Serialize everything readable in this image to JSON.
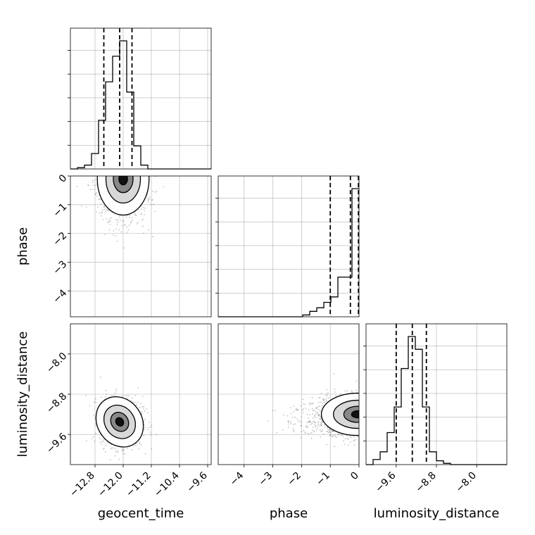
{
  "chart_data": {
    "type": "corner",
    "parameters": [
      "geocent_time",
      "phase",
      "luminosity_distance"
    ],
    "axis_labels": {
      "geocent_time": "geocent_time",
      "phase": "phase",
      "luminosity_distance": "luminosity_distance"
    },
    "ranges": {
      "geocent_time": [
        -13.5,
        -9.5
      ],
      "phase": [
        -4.9,
        0.0
      ],
      "luminosity_distance": [
        -10.2,
        -7.4
      ]
    },
    "ticks": {
      "geocent_time": [
        {
          "v": -12.8,
          "label": "−12.8"
        },
        {
          "v": -12.0,
          "label": "−12.0"
        },
        {
          "v": -11.2,
          "label": "−11.2"
        },
        {
          "v": -10.4,
          "label": "−10.4"
        },
        {
          "v": -9.6,
          "label": "−9.6"
        }
      ],
      "phase": [
        {
          "v": -4,
          "label": "−4"
        },
        {
          "v": -3,
          "label": "−3"
        },
        {
          "v": -2,
          "label": "−2"
        },
        {
          "v": -1,
          "label": "−1"
        },
        {
          "v": 0,
          "label": "0"
        }
      ],
      "luminosity_distance": [
        {
          "v": -9.6,
          "label": "−9.6"
        },
        {
          "v": -8.8,
          "label": "−8.8"
        },
        {
          "v": -8.0,
          "label": "−8.0"
        }
      ]
    },
    "grid": true,
    "histograms": [
      {
        "param": "geocent_time",
        "bin_edges": [
          -13.5,
          -13.3,
          -13.1,
          -12.9,
          -12.7,
          -12.5,
          -12.3,
          -12.1,
          -11.9,
          -11.7,
          -11.5,
          -11.3,
          -11.1,
          -10.9,
          -10.7,
          -10.5,
          -10.3,
          -10.1,
          -9.9,
          -9.7,
          -9.5
        ],
        "counts": [
          0,
          1,
          3,
          12,
          38,
          68,
          88,
          100,
          60,
          18,
          3,
          0,
          0,
          0,
          0,
          0,
          0,
          0,
          0,
          0
        ],
        "quantiles": [
          -12.55,
          -12.1,
          -11.75
        ]
      },
      {
        "param": "phase",
        "bin_edges": [
          -4.9,
          -4.655,
          -4.41,
          -4.165,
          -3.92,
          -3.675,
          -3.43,
          -3.185,
          -2.94,
          -2.695,
          -2.45,
          -2.205,
          -1.96,
          -1.715,
          -1.47,
          -1.225,
          -0.98,
          -0.735,
          -0.49,
          -0.245,
          0.0
        ],
        "counts": [
          0,
          0,
          0,
          0,
          0,
          0,
          0,
          0,
          0,
          0,
          0,
          0,
          1,
          3,
          5,
          8,
          11,
          22,
          22,
          71
        ],
        "quantiles": [
          -1.0,
          -0.3,
          -0.02
        ]
      },
      {
        "param": "luminosity_distance",
        "bin_edges": [
          -10.2,
          -10.06,
          -9.92,
          -9.78,
          -9.64,
          -9.5,
          -9.36,
          -9.22,
          -9.08,
          -8.94,
          -8.8,
          -8.66,
          -8.52,
          -8.38,
          -8.24,
          -8.1,
          -7.96,
          -7.82,
          -7.68,
          -7.54,
          -7.4
        ],
        "counts": [
          0,
          4,
          10,
          25,
          45,
          75,
          100,
          90,
          45,
          10,
          3,
          1,
          0,
          0,
          0,
          0,
          0,
          0,
          0,
          0
        ],
        "quantiles": [
          -9.6,
          -9.28,
          -9.0
        ]
      }
    ],
    "scatter_panels": [
      {
        "x": "geocent_time",
        "y": "phase",
        "center": [
          -12.0,
          -0.25
        ],
        "spread": [
          0.35,
          0.6
        ],
        "peak": [
          -12.0,
          -0.1
        ]
      },
      {
        "x": "geocent_time",
        "y": "luminosity_distance",
        "center": [
          -12.05,
          -9.35
        ],
        "spread": [
          0.3,
          0.25
        ],
        "peak": [
          -12.1,
          -9.35
        ]
      },
      {
        "x": "phase",
        "y": "luminosity_distance",
        "center": [
          -0.5,
          -9.25
        ],
        "spread": [
          0.6,
          0.2
        ],
        "peak": [
          -0.05,
          -9.2
        ]
      }
    ]
  }
}
